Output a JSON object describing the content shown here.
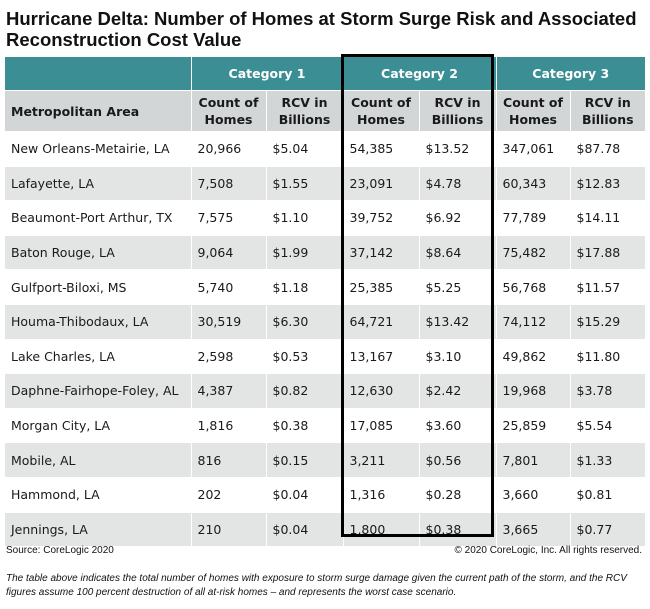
{
  "title": "Hurricane Delta: Number of Homes at Storm Surge Risk and Associated Reconstruction Cost Value",
  "header": {
    "category1": "Category 1",
    "category2": "Category 2",
    "category3": "Category 3",
    "metro_label": "Metropolitan Area",
    "count_label": "Count of Homes",
    "rcv_label": "RCV in Billions"
  },
  "colors": {
    "header_teal": "#3b8e94",
    "subheader_gray": "#d3d6d6",
    "row_alt": "#e3e5e5"
  },
  "chart_data": {
    "type": "table",
    "title": "Hurricane Delta: Number of Homes at Storm Surge Risk and Associated Reconstruction Cost Value",
    "columns": [
      "Metropolitan Area",
      "Category 1 Count of Homes",
      "Category 1 RCV in Billions",
      "Category 2 Count of Homes",
      "Category 2 RCV in Billions",
      "Category 3 Count of Homes",
      "Category 3 RCV in Billions"
    ],
    "rows": [
      [
        "New Orleans-Metairie, LA",
        "20,966",
        "$5.04",
        "54,385",
        "$13.52",
        "347,061",
        "$87.78"
      ],
      [
        "Lafayette, LA",
        "7,508",
        "$1.55",
        "23,091",
        "$4.78",
        "60,343",
        "$12.83"
      ],
      [
        "Beaumont-Port Arthur, TX",
        "7,575",
        "$1.10",
        "39,752",
        "$6.92",
        "77,789",
        "$14.11"
      ],
      [
        "Baton Rouge, LA",
        "9,064",
        "$1.99",
        "37,142",
        "$8.64",
        "75,482",
        "$17.88"
      ],
      [
        "Gulfport-Biloxi, MS",
        "5,740",
        "$1.18",
        "25,385",
        "$5.25",
        "56,768",
        "$11.57"
      ],
      [
        "Houma-Thibodaux, LA",
        "30,519",
        "$6.30",
        "64,721",
        "$13.42",
        "74,112",
        "$15.29"
      ],
      [
        "Lake Charles, LA",
        "2,598",
        "$0.53",
        "13,167",
        "$3.10",
        "49,862",
        "$11.80"
      ],
      [
        "Daphne-Fairhope-Foley, AL",
        "4,387",
        "$0.82",
        "12,630",
        "$2.42",
        "19,968",
        "$3.78"
      ],
      [
        "Morgan City, LA",
        "1,816",
        "$0.38",
        "17,085",
        "$3.60",
        "25,859",
        "$5.54"
      ],
      [
        "Mobile, AL",
        "816",
        "$0.15",
        "3,211",
        "$0.56",
        "7,801",
        "$1.33"
      ],
      [
        "Hammond, LA",
        "202",
        "$0.04",
        "1,316",
        "$0.28",
        "3,660",
        "$0.81"
      ],
      [
        "Jennings, LA",
        "210",
        "$0.04",
        "1,800",
        "$0.38",
        "3,665",
        "$0.77"
      ]
    ]
  },
  "footer": {
    "source": "Source: CoreLogic 2020",
    "copyright": "© 2020 CoreLogic, Inc. All rights reserved.",
    "note": "The table above indicates the total number of homes with exposure to storm surge damage given the current path of the storm, and the RCV figures assume 100 percent destruction of all at-risk homes – and represents the worst case scenario."
  }
}
